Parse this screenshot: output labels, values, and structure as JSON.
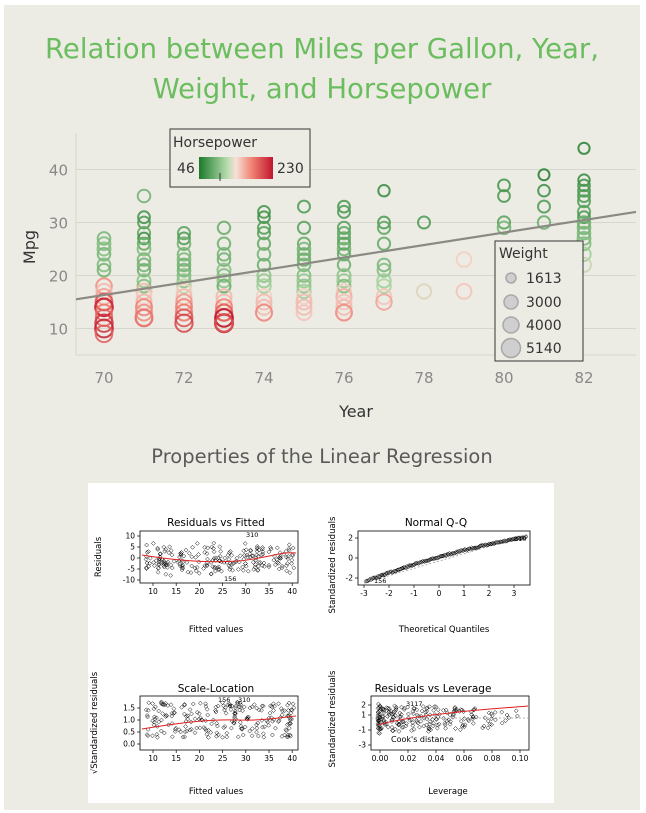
{
  "title_line1": "Relation between Miles per Gallon, Year,",
  "title_line2": "Weight, and Horsepower",
  "colors": {
    "title": "#6cbd5f",
    "bg": "#ecece4",
    "hp_low": "#1b7a2a",
    "hp_mid": "#f8d0c6",
    "hp_high": "#c0152f",
    "regression": "#8a8a82"
  },
  "chart_data": [
    {
      "type": "scatter",
      "xlabel": "Year",
      "ylabel": "Mpg",
      "xlim": [
        69.3,
        83.3
      ],
      "ylim": [
        5,
        45
      ],
      "xticks": [
        70,
        72,
        74,
        76,
        78,
        80,
        82
      ],
      "yticks": [
        10,
        20,
        30,
        40
      ],
      "grid": true,
      "legend_color": {
        "title": "Horsepower",
        "min": "46",
        "max": "230",
        "placement": "top-left"
      },
      "legend_size": {
        "title": "Weight",
        "entries": [
          "1613",
          "3000",
          "4000",
          "5140"
        ],
        "placement": "right"
      },
      "regression_line": {
        "x": [
          69.3,
          83.3
        ],
        "y": [
          15.5,
          32.0
        ]
      },
      "points": [
        [
          70,
          27,
          90
        ],
        [
          70,
          26,
          95
        ],
        [
          70,
          25,
          97
        ],
        [
          70,
          24,
          90
        ],
        [
          70,
          22,
          95
        ],
        [
          70,
          21,
          88
        ],
        [
          70,
          18,
          150
        ],
        [
          70,
          18,
          165
        ],
        [
          70,
          17,
          150
        ],
        [
          70,
          16,
          160
        ],
        [
          70,
          15,
          175
        ],
        [
          70,
          15,
          198
        ],
        [
          70,
          14,
          215
        ],
        [
          70,
          14,
          200
        ],
        [
          70,
          14,
          220
        ],
        [
          70,
          13,
          180
        ],
        [
          70,
          12,
          190
        ],
        [
          70,
          11,
          215
        ],
        [
          70,
          10,
          225
        ],
        [
          70,
          9,
          193
        ],
        [
          71,
          35,
          88
        ],
        [
          71,
          31,
          65
        ],
        [
          71,
          30,
          69
        ],
        [
          71,
          28,
          80
        ],
        [
          71,
          27,
          60
        ],
        [
          71,
          26,
          80
        ],
        [
          71,
          25,
          95
        ],
        [
          71,
          23,
          90
        ],
        [
          71,
          22,
          88
        ],
        [
          71,
          21,
          85
        ],
        [
          71,
          19,
          100
        ],
        [
          71,
          18,
          95
        ],
        [
          71,
          17,
          150
        ],
        [
          71,
          16,
          140
        ],
        [
          71,
          15,
          153
        ],
        [
          71,
          14,
          175
        ],
        [
          71,
          13,
          170
        ],
        [
          71,
          12,
          200
        ],
        [
          71,
          12,
          175
        ],
        [
          72,
          28,
          76
        ],
        [
          72,
          27,
          69
        ],
        [
          72,
          26,
          86
        ],
        [
          72,
          24,
          90
        ],
        [
          72,
          23,
          92
        ],
        [
          72,
          22,
          87
        ],
        [
          72,
          21,
          86
        ],
        [
          72,
          20,
          95
        ],
        [
          72,
          19,
          100
        ],
        [
          72,
          18,
          120
        ],
        [
          72,
          17,
          140
        ],
        [
          72,
          16,
          150
        ],
        [
          72,
          15,
          165
        ],
        [
          72,
          14,
          175
        ],
        [
          72,
          13,
          180
        ],
        [
          72,
          12,
          200
        ],
        [
          72,
          11,
          208
        ],
        [
          73,
          29,
          83
        ],
        [
          73,
          26,
          85
        ],
        [
          73,
          24,
          90
        ],
        [
          73,
          23,
          86
        ],
        [
          73,
          21,
          97
        ],
        [
          73,
          20,
          95
        ],
        [
          73,
          19,
          100
        ],
        [
          73,
          18,
          110
        ],
        [
          73,
          18,
          88
        ],
        [
          73,
          16,
          150
        ],
        [
          73,
          15,
          150
        ],
        [
          73,
          14,
          175
        ],
        [
          73,
          13,
          180
        ],
        [
          73,
          13,
          190
        ],
        [
          73,
          12,
          215
        ],
        [
          73,
          12,
          225
        ],
        [
          73,
          11,
          230
        ],
        [
          73,
          11,
          198
        ],
        [
          74,
          32,
          65
        ],
        [
          74,
          31,
          60
        ],
        [
          74,
          29,
          70
        ],
        [
          74,
          28,
          75
        ],
        [
          74,
          26,
          80
        ],
        [
          74,
          24,
          88
        ],
        [
          74,
          22,
          85
        ],
        [
          74,
          20,
          100
        ],
        [
          74,
          19,
          105
        ],
        [
          74,
          18,
          110
        ],
        [
          74,
          16,
          140
        ],
        [
          74,
          15,
          150
        ],
        [
          74,
          14,
          150
        ],
        [
          74,
          13,
          175
        ],
        [
          75,
          33,
          70
        ],
        [
          75,
          29,
          75
        ],
        [
          75,
          26,
          80
        ],
        [
          75,
          25,
          90
        ],
        [
          75,
          24,
          85
        ],
        [
          75,
          23,
          83
        ],
        [
          75,
          22,
          88
        ],
        [
          75,
          20,
          95
        ],
        [
          75,
          19,
          105
        ],
        [
          75,
          18,
          100
        ],
        [
          75,
          17,
          110
        ],
        [
          75,
          16,
          140
        ],
        [
          75,
          15,
          150
        ],
        [
          75,
          14,
          150
        ],
        [
          75,
          13,
          145
        ],
        [
          76,
          33,
          66
        ],
        [
          76,
          32,
          70
        ],
        [
          76,
          29,
          75
        ],
        [
          76,
          28,
          78
        ],
        [
          76,
          27,
          80
        ],
        [
          76,
          26,
          75
        ],
        [
          76,
          25,
          88
        ],
        [
          76,
          24,
          79
        ],
        [
          76,
          22,
          85
        ],
        [
          76,
          20,
          100
        ],
        [
          76,
          19,
          105
        ],
        [
          76,
          18,
          95
        ],
        [
          76,
          17,
          140
        ],
        [
          76,
          16,
          155
        ],
        [
          76,
          15,
          145
        ],
        [
          76,
          14,
          150
        ],
        [
          76,
          13,
          170
        ],
        [
          76,
          13,
          165
        ],
        [
          77,
          36,
          58
        ],
        [
          77,
          30,
          68
        ],
        [
          77,
          29,
          78
        ],
        [
          77,
          26,
          80
        ],
        [
          77,
          22,
          90
        ],
        [
          77,
          21,
          95
        ],
        [
          77,
          19,
          110
        ],
        [
          77,
          18,
          115
        ],
        [
          77,
          16,
          145
        ],
        [
          77,
          15,
          160
        ],
        [
          78,
          30,
          70
        ],
        [
          78,
          17,
          130
        ],
        [
          79,
          23,
          140
        ],
        [
          79,
          17,
          145
        ],
        [
          80,
          37,
          65
        ],
        [
          80,
          35,
          68
        ],
        [
          80,
          30,
          75
        ],
        [
          80,
          29,
          88
        ],
        [
          80,
          24,
          95
        ],
        [
          80,
          19,
          110
        ],
        [
          81,
          39,
          48
        ],
        [
          81,
          36,
          62
        ],
        [
          81,
          33,
          70
        ],
        [
          81,
          30,
          84
        ],
        [
          81,
          25,
          105
        ],
        [
          82,
          44,
          52
        ],
        [
          82,
          38,
          58
        ],
        [
          82,
          37,
          63
        ],
        [
          82,
          36,
          67
        ],
        [
          82,
          35,
          70
        ],
        [
          82,
          34,
          72
        ],
        [
          82,
          32,
          75
        ],
        [
          82,
          31,
          68
        ],
        [
          82,
          30,
          84
        ],
        [
          82,
          29,
          88
        ],
        [
          82,
          28,
          90
        ],
        [
          82,
          27,
          92
        ],
        [
          82,
          26,
          96
        ],
        [
          82,
          24,
          110
        ],
        [
          82,
          22,
          125
        ]
      ]
    },
    {
      "type": "scatter",
      "title": "Residuals vs Fitted",
      "xlabel": "Fitted values",
      "ylabel": "Residuals",
      "xticks": [
        "10",
        "15",
        "20",
        "25",
        "30",
        "35",
        "40"
      ],
      "yticks": [
        "-10",
        "-5",
        "0",
        "5",
        "10"
      ],
      "labels": [
        "310",
        "156"
      ]
    },
    {
      "type": "scatter",
      "title": "Normal Q-Q",
      "xlabel": "Theoretical Quantiles",
      "ylabel": "Standardized residuals",
      "xticks": [
        "-3",
        "-2",
        "-1",
        "0",
        "1",
        "2",
        "3"
      ],
      "yticks": [
        "-2",
        "0",
        "2"
      ],
      "labels": [
        "310",
        "156"
      ]
    },
    {
      "type": "scatter",
      "title": "Scale-Location",
      "xlabel": "Fitted values",
      "ylabel": "√Standardized residuals",
      "xticks": [
        "10",
        "15",
        "20",
        "25",
        "30",
        "35",
        "40"
      ],
      "yticks": [
        "0.0",
        "0.5",
        "1.0",
        "1.5"
      ],
      "labels": [
        "156",
        "310"
      ]
    },
    {
      "type": "scatter",
      "title": "Residuals vs Leverage",
      "xlabel": "Leverage",
      "ylabel": "Standardized residuals",
      "xticks": [
        "0.00",
        "0.02",
        "0.04",
        "0.06",
        "0.08",
        "0.10"
      ],
      "yticks": [
        "-3",
        "-1",
        "1",
        "2"
      ],
      "labels": [
        "Cook's distance",
        "3117"
      ]
    }
  ],
  "subtitle": "Properties of the Linear Regression"
}
